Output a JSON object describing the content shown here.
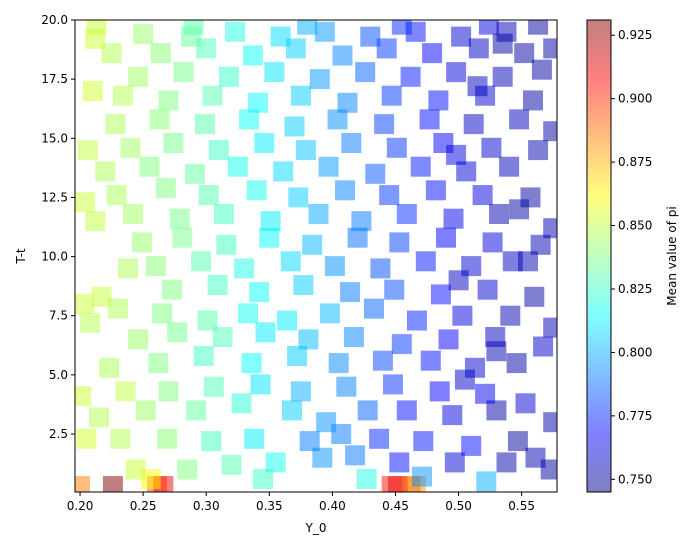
{
  "chart_data": {
    "type": "scatter",
    "xlabel": "Y_0",
    "ylabel": "T-t",
    "xlim": [
      0.196,
      0.578
    ],
    "ylim": [
      0.05,
      20.0
    ],
    "x_ticks": [
      0.2,
      0.25,
      0.3,
      0.35,
      0.4,
      0.45,
      0.5,
      0.55
    ],
    "x_tick_labels": [
      "0.20",
      "0.25",
      "0.30",
      "0.35",
      "0.40",
      "0.45",
      "0.50",
      "0.55"
    ],
    "y_ticks": [
      2.5,
      5.0,
      7.5,
      10.0,
      12.5,
      15.0,
      17.5,
      20.0
    ],
    "y_tick_labels": [
      "2.5",
      "5.0",
      "7.5",
      "10.0",
      "12.5",
      "15.0",
      "17.5",
      "20.0"
    ],
    "marker": "square",
    "marker_alpha": 0.5,
    "colormap": "jet",
    "colorbar": {
      "label": "Mean value of pi",
      "min": 0.745,
      "max": 0.931,
      "ticks": [
        0.75,
        0.775,
        0.8,
        0.825,
        0.85,
        0.875,
        0.9,
        0.925
      ],
      "tick_labels": [
        "0.750",
        "0.775",
        "0.800",
        "0.825",
        "0.850",
        "0.875",
        "0.900",
        "0.925"
      ]
    },
    "points": [
      [
        0.2,
        0.3,
        0.885
      ],
      [
        0.226,
        0.3,
        0.931
      ],
      [
        0.261,
        0.3,
        0.893
      ],
      [
        0.266,
        0.3,
        0.91
      ],
      [
        0.447,
        0.3,
        0.905
      ],
      [
        0.452,
        0.3,
        0.912
      ],
      [
        0.462,
        0.3,
        0.895
      ],
      [
        0.466,
        0.3,
        0.88
      ],
      [
        0.522,
        0.5,
        0.8
      ],
      [
        0.471,
        0.7,
        0.795
      ],
      [
        0.427,
        0.6,
        0.82
      ],
      [
        0.345,
        0.6,
        0.825
      ],
      [
        0.256,
        0.6,
        0.862
      ],
      [
        0.244,
        1.0,
        0.852
      ],
      [
        0.285,
        1.0,
        0.838
      ],
      [
        0.32,
        1.2,
        0.83
      ],
      [
        0.355,
        1.3,
        0.818
      ],
      [
        0.392,
        1.5,
        0.795
      ],
      [
        0.418,
        1.6,
        0.79
      ],
      [
        0.453,
        1.3,
        0.77
      ],
      [
        0.497,
        1.3,
        0.76
      ],
      [
        0.538,
        1.3,
        0.752
      ],
      [
        0.561,
        1.5,
        0.755
      ],
      [
        0.547,
        2.2,
        0.75
      ],
      [
        0.51,
        2.0,
        0.77
      ],
      [
        0.472,
        2.2,
        0.772
      ],
      [
        0.437,
        2.3,
        0.775
      ],
      [
        0.407,
        2.5,
        0.79
      ],
      [
        0.382,
        2.2,
        0.79
      ],
      [
        0.338,
        2.3,
        0.812
      ],
      [
        0.304,
        2.2,
        0.826
      ],
      [
        0.269,
        2.3,
        0.84
      ],
      [
        0.232,
        2.3,
        0.848
      ],
      [
        0.205,
        2.3,
        0.853
      ],
      [
        0.215,
        3.2,
        0.848
      ],
      [
        0.252,
        3.5,
        0.843
      ],
      [
        0.292,
        3.5,
        0.832
      ],
      [
        0.328,
        3.8,
        0.822
      ],
      [
        0.368,
        3.5,
        0.806
      ],
      [
        0.395,
        3.0,
        0.795
      ],
      [
        0.428,
        3.5,
        0.786
      ],
      [
        0.459,
        3.5,
        0.77
      ],
      [
        0.495,
        3.3,
        0.763
      ],
      [
        0.53,
        3.5,
        0.752
      ],
      [
        0.553,
        3.8,
        0.76
      ],
      [
        0.521,
        4.2,
        0.765
      ],
      [
        0.485,
        4.3,
        0.768
      ],
      [
        0.448,
        4.6,
        0.776
      ],
      [
        0.411,
        4.5,
        0.792
      ],
      [
        0.375,
        4.3,
        0.8
      ],
      [
        0.343,
        4.6,
        0.81
      ],
      [
        0.306,
        4.5,
        0.828
      ],
      [
        0.27,
        4.3,
        0.838
      ],
      [
        0.236,
        4.3,
        0.85
      ],
      [
        0.201,
        4.1,
        0.852
      ],
      [
        0.223,
        5.3,
        0.846
      ],
      [
        0.262,
        5.5,
        0.838
      ],
      [
        0.298,
        5.8,
        0.826
      ],
      [
        0.336,
        5.5,
        0.815
      ],
      [
        0.372,
        5.8,
        0.805
      ],
      [
        0.405,
        5.5,
        0.793
      ],
      [
        0.44,
        5.6,
        0.781
      ],
      [
        0.478,
        5.6,
        0.771
      ],
      [
        0.513,
        5.3,
        0.76
      ],
      [
        0.546,
        5.5,
        0.752
      ],
      [
        0.567,
        6.2,
        0.758
      ],
      [
        0.529,
        6.6,
        0.756
      ],
      [
        0.492,
        6.5,
        0.768
      ],
      [
        0.455,
        6.3,
        0.778
      ],
      [
        0.417,
        6.6,
        0.792
      ],
      [
        0.381,
        6.5,
        0.802
      ],
      [
        0.347,
        6.8,
        0.812
      ],
      [
        0.313,
        6.6,
        0.828
      ],
      [
        0.277,
        6.8,
        0.836
      ],
      [
        0.246,
        6.5,
        0.843
      ],
      [
        0.208,
        7.2,
        0.848
      ],
      [
        0.23,
        7.8,
        0.846
      ],
      [
        0.217,
        8.3,
        0.851
      ],
      [
        0.203,
        8.0,
        0.852
      ],
      [
        0.265,
        7.6,
        0.838
      ],
      [
        0.301,
        7.3,
        0.83
      ],
      [
        0.333,
        7.6,
        0.818
      ],
      [
        0.364,
        7.3,
        0.812
      ],
      [
        0.398,
        7.6,
        0.802
      ],
      [
        0.433,
        7.8,
        0.786
      ],
      [
        0.467,
        7.3,
        0.774
      ],
      [
        0.503,
        7.5,
        0.762
      ],
      [
        0.541,
        7.5,
        0.754
      ],
      [
        0.56,
        8.3,
        0.752
      ],
      [
        0.523,
        8.6,
        0.76
      ],
      [
        0.486,
        8.4,
        0.77
      ],
      [
        0.449,
        8.6,
        0.782
      ],
      [
        0.414,
        8.5,
        0.79
      ],
      [
        0.377,
        8.8,
        0.806
      ],
      [
        0.342,
        8.5,
        0.816
      ],
      [
        0.309,
        8.8,
        0.826
      ],
      [
        0.273,
        8.6,
        0.838
      ],
      [
        0.238,
        9.5,
        0.846
      ],
      [
        0.26,
        9.6,
        0.84
      ],
      [
        0.296,
        9.8,
        0.83
      ],
      [
        0.33,
        9.5,
        0.82
      ],
      [
        0.367,
        9.8,
        0.808
      ],
      [
        0.402,
        9.6,
        0.794
      ],
      [
        0.438,
        9.5,
        0.782
      ],
      [
        0.474,
        9.8,
        0.772
      ],
      [
        0.51,
        9.6,
        0.76
      ],
      [
        0.543,
        9.8,
        0.757
      ],
      [
        0.565,
        10.5,
        0.755
      ],
      [
        0.527,
        10.6,
        0.762
      ],
      [
        0.49,
        10.8,
        0.768
      ],
      [
        0.453,
        10.6,
        0.78
      ],
      [
        0.42,
        10.8,
        0.788
      ],
      [
        0.384,
        10.5,
        0.802
      ],
      [
        0.35,
        10.8,
        0.814
      ],
      [
        0.316,
        10.5,
        0.826
      ],
      [
        0.281,
        10.8,
        0.836
      ],
      [
        0.249,
        10.6,
        0.842
      ],
      [
        0.212,
        11.5,
        0.85
      ],
      [
        0.242,
        11.8,
        0.844
      ],
      [
        0.279,
        11.6,
        0.836
      ],
      [
        0.314,
        11.8,
        0.826
      ],
      [
        0.351,
        11.5,
        0.812
      ],
      [
        0.389,
        11.8,
        0.798
      ],
      [
        0.423,
        11.5,
        0.79
      ],
      [
        0.459,
        11.8,
        0.776
      ],
      [
        0.496,
        11.6,
        0.764
      ],
      [
        0.532,
        11.8,
        0.754
      ],
      [
        0.557,
        12.5,
        0.752
      ],
      [
        0.519,
        12.6,
        0.762
      ],
      [
        0.482,
        12.8,
        0.77
      ],
      [
        0.445,
        12.6,
        0.778
      ],
      [
        0.41,
        12.8,
        0.792
      ],
      [
        0.373,
        12.5,
        0.806
      ],
      [
        0.34,
        12.8,
        0.818
      ],
      [
        0.302,
        12.6,
        0.83
      ],
      [
        0.268,
        12.9,
        0.838
      ],
      [
        0.229,
        12.6,
        0.846
      ],
      [
        0.204,
        12.3,
        0.852
      ],
      [
        0.22,
        13.6,
        0.846
      ],
      [
        0.255,
        13.8,
        0.838
      ],
      [
        0.291,
        13.5,
        0.832
      ],
      [
        0.325,
        13.8,
        0.818
      ],
      [
        0.361,
        13.6,
        0.808
      ],
      [
        0.397,
        13.8,
        0.796
      ],
      [
        0.434,
        13.5,
        0.784
      ],
      [
        0.47,
        13.8,
        0.772
      ],
      [
        0.506,
        13.6,
        0.76
      ],
      [
        0.54,
        13.8,
        0.756
      ],
      [
        0.563,
        14.5,
        0.753
      ],
      [
        0.526,
        14.6,
        0.76
      ],
      [
        0.488,
        14.8,
        0.768
      ],
      [
        0.451,
        14.6,
        0.778
      ],
      [
        0.415,
        14.8,
        0.79
      ],
      [
        0.379,
        14.5,
        0.804
      ],
      [
        0.346,
        14.8,
        0.812
      ],
      [
        0.31,
        14.5,
        0.826
      ],
      [
        0.274,
        14.8,
        0.836
      ],
      [
        0.24,
        14.6,
        0.844
      ],
      [
        0.206,
        14.5,
        0.85
      ],
      [
        0.228,
        15.6,
        0.846
      ],
      [
        0.263,
        15.8,
        0.84
      ],
      [
        0.299,
        15.6,
        0.83
      ],
      [
        0.334,
        15.8,
        0.816
      ],
      [
        0.37,
        15.5,
        0.806
      ],
      [
        0.404,
        15.8,
        0.794
      ],
      [
        0.441,
        15.6,
        0.78
      ],
      [
        0.477,
        15.8,
        0.77
      ],
      [
        0.512,
        15.6,
        0.758
      ],
      [
        0.548,
        15.8,
        0.756
      ],
      [
        0.559,
        16.6,
        0.752
      ],
      [
        0.521,
        16.8,
        0.76
      ],
      [
        0.484,
        16.6,
        0.77
      ],
      [
        0.447,
        16.8,
        0.778
      ],
      [
        0.412,
        16.5,
        0.792
      ],
      [
        0.375,
        16.8,
        0.806
      ],
      [
        0.341,
        16.5,
        0.814
      ],
      [
        0.305,
        16.8,
        0.83
      ],
      [
        0.27,
        16.6,
        0.838
      ],
      [
        0.234,
        16.8,
        0.848
      ],
      [
        0.21,
        17.0,
        0.853
      ],
      [
        0.246,
        17.6,
        0.844
      ],
      [
        0.282,
        17.8,
        0.836
      ],
      [
        0.318,
        17.6,
        0.824
      ],
      [
        0.354,
        17.8,
        0.81
      ],
      [
        0.39,
        17.5,
        0.796
      ],
      [
        0.426,
        17.8,
        0.786
      ],
      [
        0.462,
        17.6,
        0.772
      ],
      [
        0.498,
        17.8,
        0.762
      ],
      [
        0.535,
        17.6,
        0.756
      ],
      [
        0.566,
        17.9,
        0.752
      ],
      [
        0.552,
        18.6,
        0.75
      ],
      [
        0.516,
        18.8,
        0.758
      ],
      [
        0.479,
        18.6,
        0.768
      ],
      [
        0.443,
        18.8,
        0.778
      ],
      [
        0.408,
        18.5,
        0.792
      ],
      [
        0.371,
        18.8,
        0.806
      ],
      [
        0.337,
        18.5,
        0.816
      ],
      [
        0.3,
        18.8,
        0.828
      ],
      [
        0.264,
        18.6,
        0.84
      ],
      [
        0.225,
        18.6,
        0.848
      ],
      [
        0.212,
        19.2,
        0.852
      ],
      [
        0.25,
        19.4,
        0.842
      ],
      [
        0.288,
        19.3,
        0.832
      ],
      [
        0.323,
        19.5,
        0.82
      ],
      [
        0.359,
        19.3,
        0.808
      ],
      [
        0.394,
        19.5,
        0.796
      ],
      [
        0.43,
        19.3,
        0.782
      ],
      [
        0.466,
        19.5,
        0.77
      ],
      [
        0.502,
        19.3,
        0.76
      ],
      [
        0.538,
        19.5,
        0.754
      ],
      [
        0.563,
        19.8,
        0.75
      ],
      [
        0.524,
        19.8,
        0.762
      ],
      [
        0.455,
        19.8,
        0.775
      ],
      [
        0.38,
        19.8,
        0.8
      ],
      [
        0.29,
        19.8,
        0.83
      ],
      [
        0.213,
        19.8,
        0.852
      ],
      [
        0.575,
        18.8,
        0.752
      ],
      [
        0.575,
        15.3,
        0.752
      ],
      [
        0.575,
        11.2,
        0.755
      ],
      [
        0.575,
        7.0,
        0.755
      ],
      [
        0.575,
        3.0,
        0.752
      ],
      [
        0.573,
        1.0,
        0.752
      ],
      [
        0.555,
        9.8,
        0.755
      ],
      [
        0.548,
        12.0,
        0.752
      ],
      [
        0.53,
        6.0,
        0.755
      ],
      [
        0.505,
        4.8,
        0.758
      ],
      [
        0.5,
        9.0,
        0.758
      ],
      [
        0.498,
        14.3,
        0.762
      ],
      [
        0.515,
        17.2,
        0.756
      ],
      [
        0.535,
        19.0,
        0.752
      ]
    ]
  }
}
